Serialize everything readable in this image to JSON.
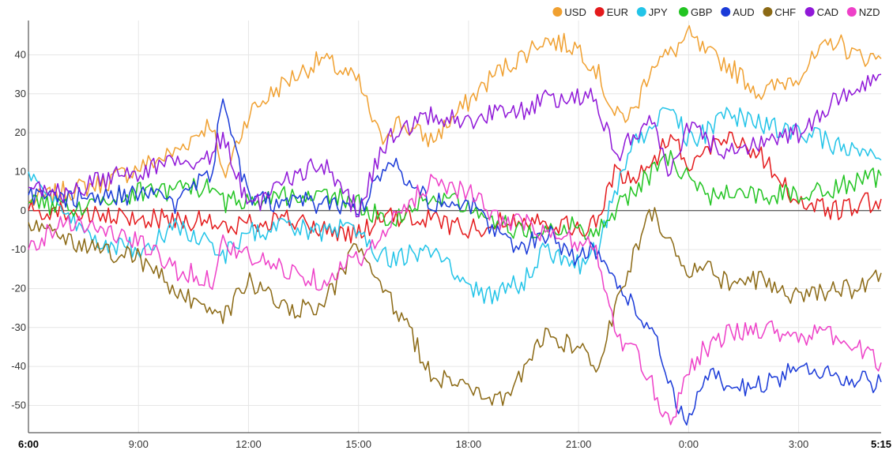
{
  "chart_data": {
    "type": "line",
    "title": "",
    "xlabel": "",
    "ylabel": "",
    "legend_position": "top-right",
    "grid": true,
    "ylim": [
      -57,
      48
    ],
    "xlim": [
      6.0,
      29.25
    ],
    "x_ticks": [
      {
        "x": 6.0,
        "label": "6:00",
        "bold": true
      },
      {
        "x": 9.0,
        "label": "9:00",
        "bold": false
      },
      {
        "x": 12.0,
        "label": "12:00",
        "bold": false
      },
      {
        "x": 15.0,
        "label": "15:00",
        "bold": false
      },
      {
        "x": 18.0,
        "label": "18:00",
        "bold": false
      },
      {
        "x": 21.0,
        "label": "21:00",
        "bold": false
      },
      {
        "x": 24.0,
        "label": "0:00",
        "bold": false
      },
      {
        "x": 27.0,
        "label": "3:00",
        "bold": false
      },
      {
        "x": 29.25,
        "label": "5:15",
        "bold": true
      }
    ],
    "y_ticks": [
      40,
      30,
      20,
      10,
      0,
      -10,
      -20,
      -30,
      -40,
      -50
    ],
    "x_hours": [
      6.0,
      7.0,
      8.0,
      9.0,
      10.0,
      11.0,
      11.3,
      12.0,
      13.0,
      14.0,
      15.0,
      15.6,
      16.0,
      17.0,
      18.0,
      18.7,
      19.5,
      20.0,
      21.0,
      21.5,
      22.0,
      22.5,
      23.0,
      23.5,
      24.0,
      24.5,
      25.0,
      26.0,
      27.0,
      28.0,
      28.5,
      29.25
    ],
    "series": [
      {
        "name": "USD",
        "color": "#f0a030",
        "values": [
          2,
          5,
          7,
          11,
          15,
          23,
          8,
          25,
          33,
          39,
          33,
          18,
          23,
          18,
          28,
          35,
          40,
          44,
          42,
          36,
          24,
          25,
          38,
          40,
          45,
          40,
          38,
          30,
          35,
          44,
          40,
          39
        ]
      },
      {
        "name": "EUR",
        "color": "#e41a1c",
        "values": [
          0,
          0,
          -2,
          -2,
          -2,
          -3,
          -5,
          -3,
          -2,
          -5,
          -6,
          -2,
          -2,
          -2,
          -5,
          -3,
          -2,
          -2,
          -5,
          -3,
          10,
          8,
          12,
          20,
          12,
          15,
          20,
          14,
          2,
          0,
          1,
          3
        ]
      },
      {
        "name": "JPY",
        "color": "#22c4e8",
        "values": [
          10,
          -2,
          -8,
          -10,
          -4,
          -8,
          -12,
          -6,
          -4,
          -6,
          -4,
          -12,
          -12,
          -10,
          -20,
          -22,
          -18,
          -10,
          -14,
          -10,
          5,
          18,
          20,
          28,
          18,
          20,
          25,
          22,
          20,
          17,
          15,
          13
        ]
      },
      {
        "name": "GBP",
        "color": "#22c422",
        "values": [
          2,
          1,
          2,
          5,
          5,
          6,
          2,
          3,
          4,
          4,
          2,
          -2,
          -2,
          4,
          2,
          -2,
          -6,
          -4,
          -4,
          -6,
          0,
          5,
          10,
          14,
          8,
          3,
          5,
          4,
          4,
          6,
          7,
          9
        ]
      },
      {
        "name": "AUD",
        "color": "#1a3ad8",
        "values": [
          4,
          3,
          4,
          4,
          2,
          10,
          29,
          3,
          2,
          2,
          0,
          10,
          12,
          2,
          2,
          -5,
          -10,
          -5,
          -12,
          -10,
          -18,
          -25,
          -30,
          -45,
          -55,
          -42,
          -45,
          -45,
          -40,
          -42,
          -44,
          -44
        ]
      },
      {
        "name": "CHF",
        "color": "#8b6914",
        "values": [
          -3,
          -8,
          -10,
          -12,
          -20,
          -28,
          -27,
          -18,
          -25,
          -25,
          -8,
          -20,
          -25,
          -42,
          -45,
          -50,
          -42,
          -32,
          -35,
          -40,
          -25,
          -12,
          0,
          -8,
          -15,
          -15,
          -18,
          -18,
          -22,
          -20,
          -20,
          -16
        ]
      },
      {
        "name": "CAD",
        "color": "#9018d8",
        "values": [
          6,
          4,
          8,
          10,
          12,
          14,
          20,
          0,
          8,
          12,
          0,
          15,
          20,
          25,
          22,
          26,
          26,
          28,
          30,
          28,
          14,
          20,
          22,
          10,
          22,
          18,
          15,
          18,
          20,
          28,
          32,
          35
        ]
      },
      {
        "name": "NZD",
        "color": "#ee40c8",
        "values": [
          -10,
          -2,
          -5,
          -8,
          -15,
          -18,
          -8,
          -12,
          -15,
          -18,
          -12,
          -8,
          -2,
          8,
          5,
          -2,
          -3,
          -6,
          -8,
          -10,
          -32,
          -36,
          -45,
          -55,
          -40,
          -35,
          -32,
          -30,
          -32,
          -32,
          -35,
          -39
        ]
      }
    ]
  }
}
